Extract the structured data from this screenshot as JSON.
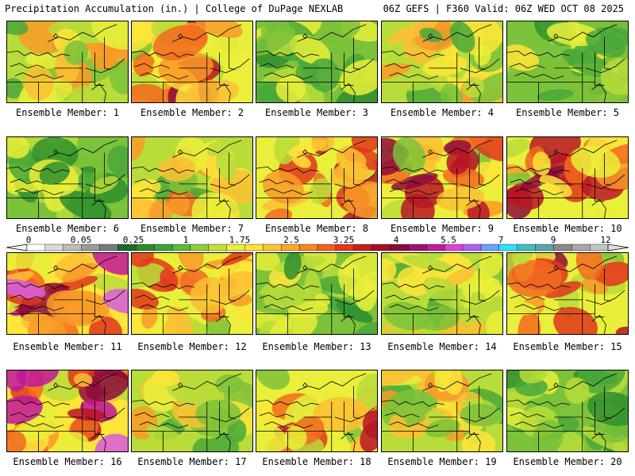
{
  "header": {
    "left": "Precipitation Accumulation (in.) | College of DuPage NEXLAB",
    "right": "06Z GEFS | F360 Valid: 06Z WED OCT 08 2025"
  },
  "members": [
    {
      "label": "Ensemble Member: 1",
      "heavy": 0.3,
      "seed": 11
    },
    {
      "label": "Ensemble Member: 2",
      "heavy": 0.75,
      "seed": 23
    },
    {
      "label": "Ensemble Member: 3",
      "heavy": 0.15,
      "seed": 37
    },
    {
      "label": "Ensemble Member: 4",
      "heavy": 0.35,
      "seed": 41
    },
    {
      "label": "Ensemble Member: 5",
      "heavy": 0.15,
      "seed": 53
    },
    {
      "label": "Ensemble Member: 6",
      "heavy": 0.05,
      "seed": 67
    },
    {
      "label": "Ensemble Member: 7",
      "heavy": 0.4,
      "seed": 71
    },
    {
      "label": "Ensemble Member: 8",
      "heavy": 0.55,
      "seed": 83
    },
    {
      "label": "Ensemble Member: 9",
      "heavy": 0.8,
      "seed": 97
    },
    {
      "label": "Ensemble Member: 10",
      "heavy": 0.7,
      "seed": 101
    },
    {
      "label": "Ensemble Member: 11",
      "heavy": 0.9,
      "seed": 113
    },
    {
      "label": "Ensemble Member: 12",
      "heavy": 0.5,
      "seed": 127
    },
    {
      "label": "Ensemble Member: 13",
      "heavy": 0.1,
      "seed": 131
    },
    {
      "label": "Ensemble Member: 14",
      "heavy": 0.3,
      "seed": 149
    },
    {
      "label": "Ensemble Member: 15",
      "heavy": 0.8,
      "seed": 151
    },
    {
      "label": "Ensemble Member: 16",
      "heavy": 0.95,
      "seed": 163
    },
    {
      "label": "Ensemble Member: 17",
      "heavy": 0.3,
      "seed": 173
    },
    {
      "label": "Ensemble Member: 18",
      "heavy": 0.6,
      "seed": 181
    },
    {
      "label": "Ensemble Member: 19",
      "heavy": 0.35,
      "seed": 191
    },
    {
      "label": "Ensemble Member: 20",
      "heavy": 0.05,
      "seed": 197
    }
  ],
  "colorbar": {
    "labels": [
      "0",
      "0.05",
      "0.25",
      "1",
      "1.75",
      "2.5",
      "3.25",
      "4",
      "5.5",
      "7",
      "9",
      "12"
    ],
    "colors": [
      "#ffffff",
      "#d9d9d9",
      "#bdbdbd",
      "#9a9a9a",
      "#7a7a7a",
      "#1d6b2a",
      "#2e8b2e",
      "#3ca43c",
      "#5dba3a",
      "#8fcf3a",
      "#c2e03a",
      "#ecef3a",
      "#fde33a",
      "#fdc532",
      "#fca82c",
      "#f98624",
      "#f2611e",
      "#e23a1c",
      "#c81e1e",
      "#a50f2a",
      "#8b0a3a",
      "#a0106e",
      "#c41a9a",
      "#e040d0",
      "#b060f0",
      "#6fa0ff",
      "#30e0ff",
      "#40c0c0",
      "#5aa6a6",
      "#8a8a8a",
      "#a8a8a8",
      "#c4c4c4"
    ]
  }
}
